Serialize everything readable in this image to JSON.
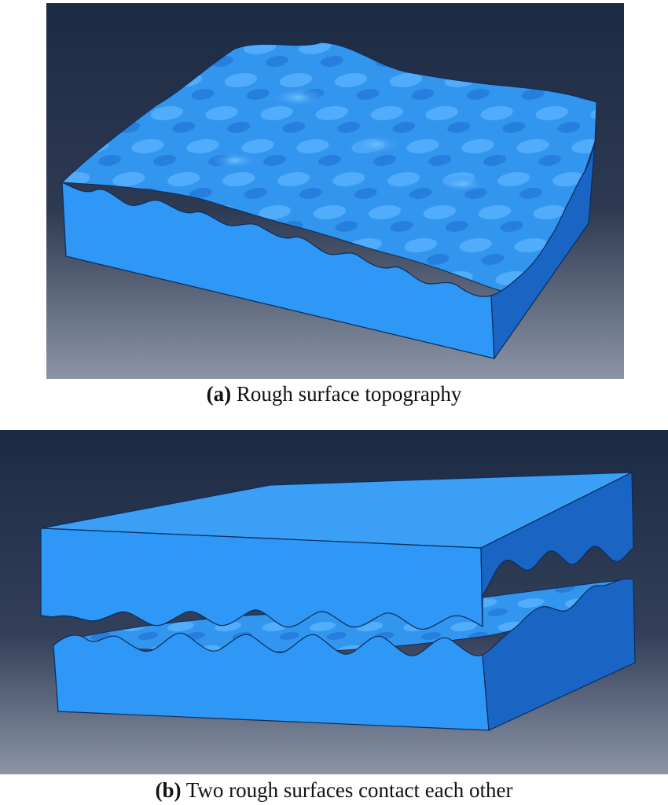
{
  "panels": [
    {
      "label": "(a)",
      "caption": "Rough surface topography",
      "scene": "single rough surface block"
    },
    {
      "label": "(b)",
      "caption": "Two rough surfaces contact each other",
      "scene": "two rough blocks in contact"
    }
  ],
  "colors": {
    "background_top": "#1c2a44",
    "background_bottom": "#8c95a6",
    "block_front": "#2f97f5",
    "block_side": "#1a64c4",
    "block_top": "#3a9ff5",
    "edge": "#0b2c5a"
  }
}
